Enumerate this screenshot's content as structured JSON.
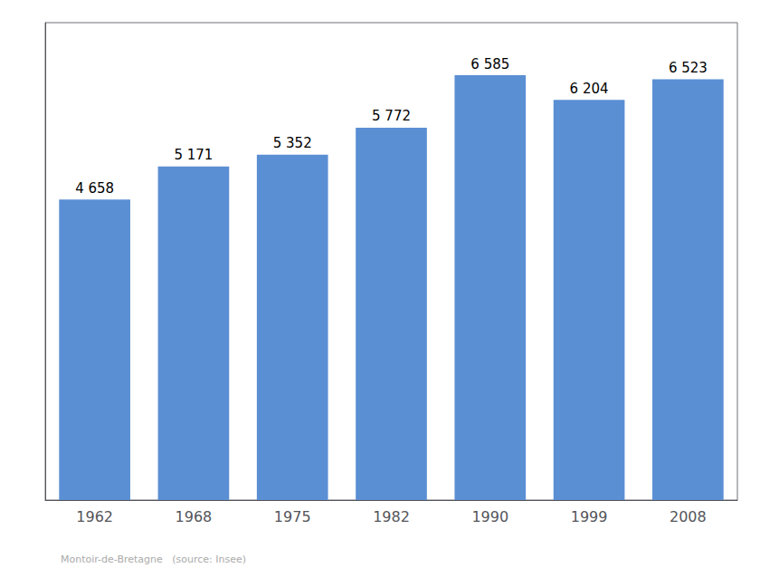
{
  "chart_data": {
    "type": "bar",
    "categories": [
      "1962",
      "1968",
      "1975",
      "1982",
      "1990",
      "1999",
      "2008"
    ],
    "values": [
      4658,
      5171,
      5352,
      5772,
      6585,
      6204,
      6523
    ],
    "value_labels": [
      "4 658",
      "5 171",
      "5 352",
      "5 772",
      "6 585",
      "6 204",
      "6 523"
    ],
    "data_labels": true,
    "color": "#5b8fd4",
    "ylim": [
      0,
      7400
    ],
    "yticks": [],
    "tick_labels": "x",
    "grid": false,
    "annotations": [
      "Montoir-de-Bretagne   (source: Insee)"
    ]
  }
}
